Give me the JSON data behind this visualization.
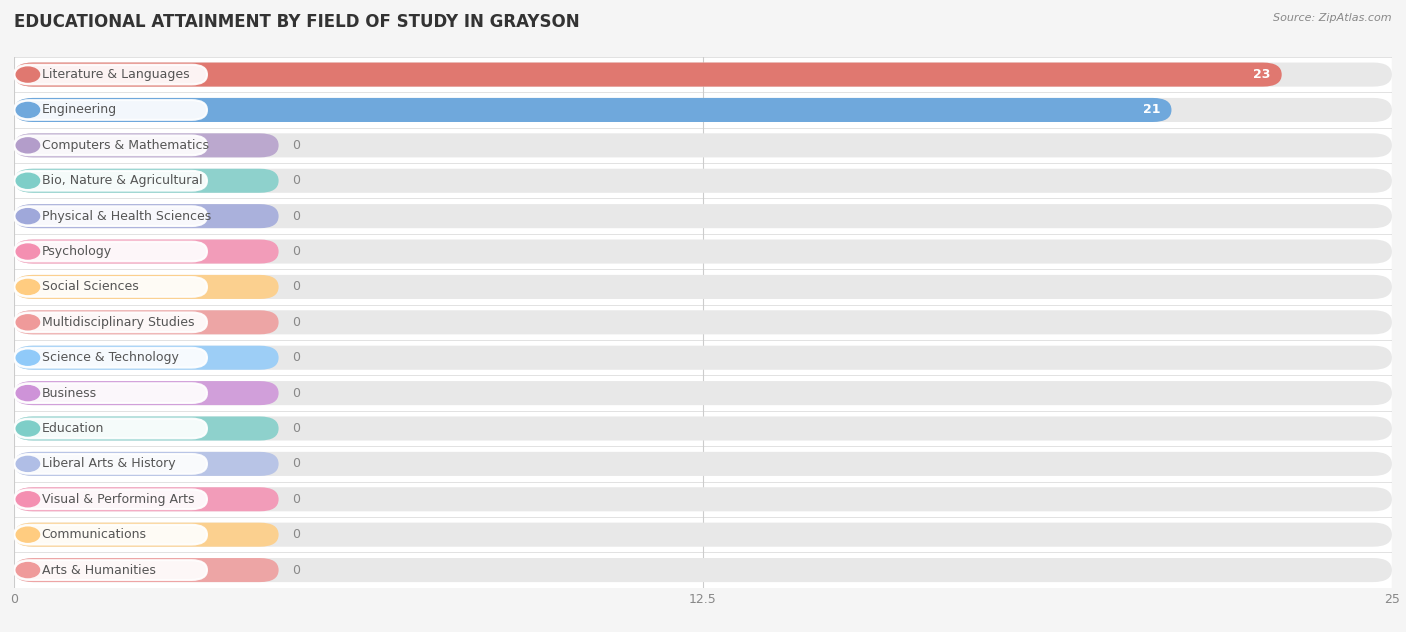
{
  "title": "EDUCATIONAL ATTAINMENT BY FIELD OF STUDY IN GRAYSON",
  "source": "Source: ZipAtlas.com",
  "categories": [
    "Literature & Languages",
    "Engineering",
    "Computers & Mathematics",
    "Bio, Nature & Agricultural",
    "Physical & Health Sciences",
    "Psychology",
    "Social Sciences",
    "Multidisciplinary Studies",
    "Science & Technology",
    "Business",
    "Education",
    "Liberal Arts & History",
    "Visual & Performing Arts",
    "Communications",
    "Arts & Humanities"
  ],
  "values": [
    23,
    21,
    0,
    0,
    0,
    0,
    0,
    0,
    0,
    0,
    0,
    0,
    0,
    0,
    0
  ],
  "bar_colors": [
    "#E07870",
    "#6FA8DC",
    "#B39DCA",
    "#7ECEC8",
    "#9FA8DA",
    "#F48FB1",
    "#FFCC80",
    "#EF9A9A",
    "#90CAF9",
    "#CE93D8",
    "#7ECEC8",
    "#B0BEE6",
    "#F48FB1",
    "#FFCC80",
    "#EF9A9A"
  ],
  "zero_bar_width": 4.8,
  "xlim": [
    0,
    25
  ],
  "xticks": [
    0,
    12.5,
    25
  ],
  "background_color": "#f5f5f5",
  "row_bg_color": "#ececec",
  "title_fontsize": 12,
  "label_fontsize": 9,
  "value_fontsize": 9,
  "bar_height": 0.68
}
